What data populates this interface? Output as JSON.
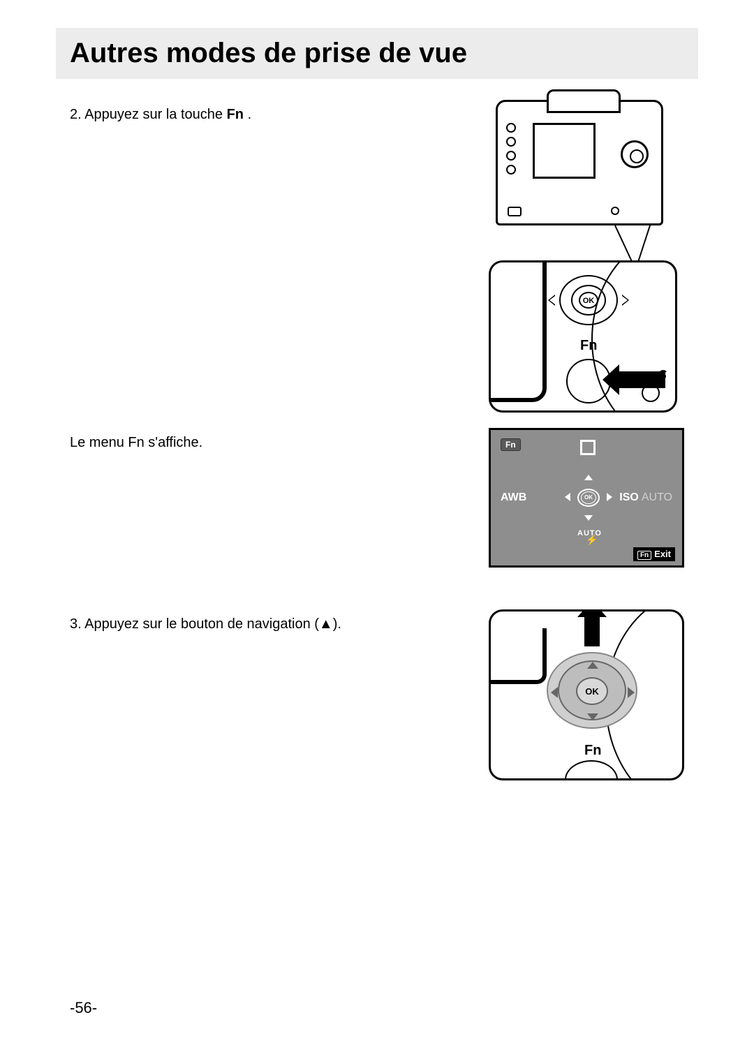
{
  "header": {
    "title": "Autres modes de prise de vue"
  },
  "steps": {
    "s2": {
      "prefix": "2. Appuyez sur la touche ",
      "bold": "Fn",
      "suffix": " ."
    },
    "s2b": {
      "text": "Le menu Fn s'affiche."
    },
    "s3": {
      "prefix": "3. Appuyez sur le bouton de navigation (",
      "triangle": "▲",
      "suffix": ")."
    }
  },
  "zoom_panel": {
    "ok": "OK",
    "fn": "Fn",
    "sd": "S"
  },
  "fn_screen": {
    "tag": "Fn",
    "awb": "AWB",
    "iso": "ISO",
    "iso_mode": "AUTO",
    "ok": "OK",
    "flash": "AUTO",
    "bolt": "⚡",
    "exit_tag": "Fn",
    "exit": "Exit"
  },
  "nav_panel": {
    "ok": "OK",
    "fn": "Fn"
  },
  "page_number": "-56-",
  "colors": {
    "header_bg": "#ececec",
    "screen_bg": "#8e8e8e",
    "dpad_gray": "#cfcfcf"
  }
}
